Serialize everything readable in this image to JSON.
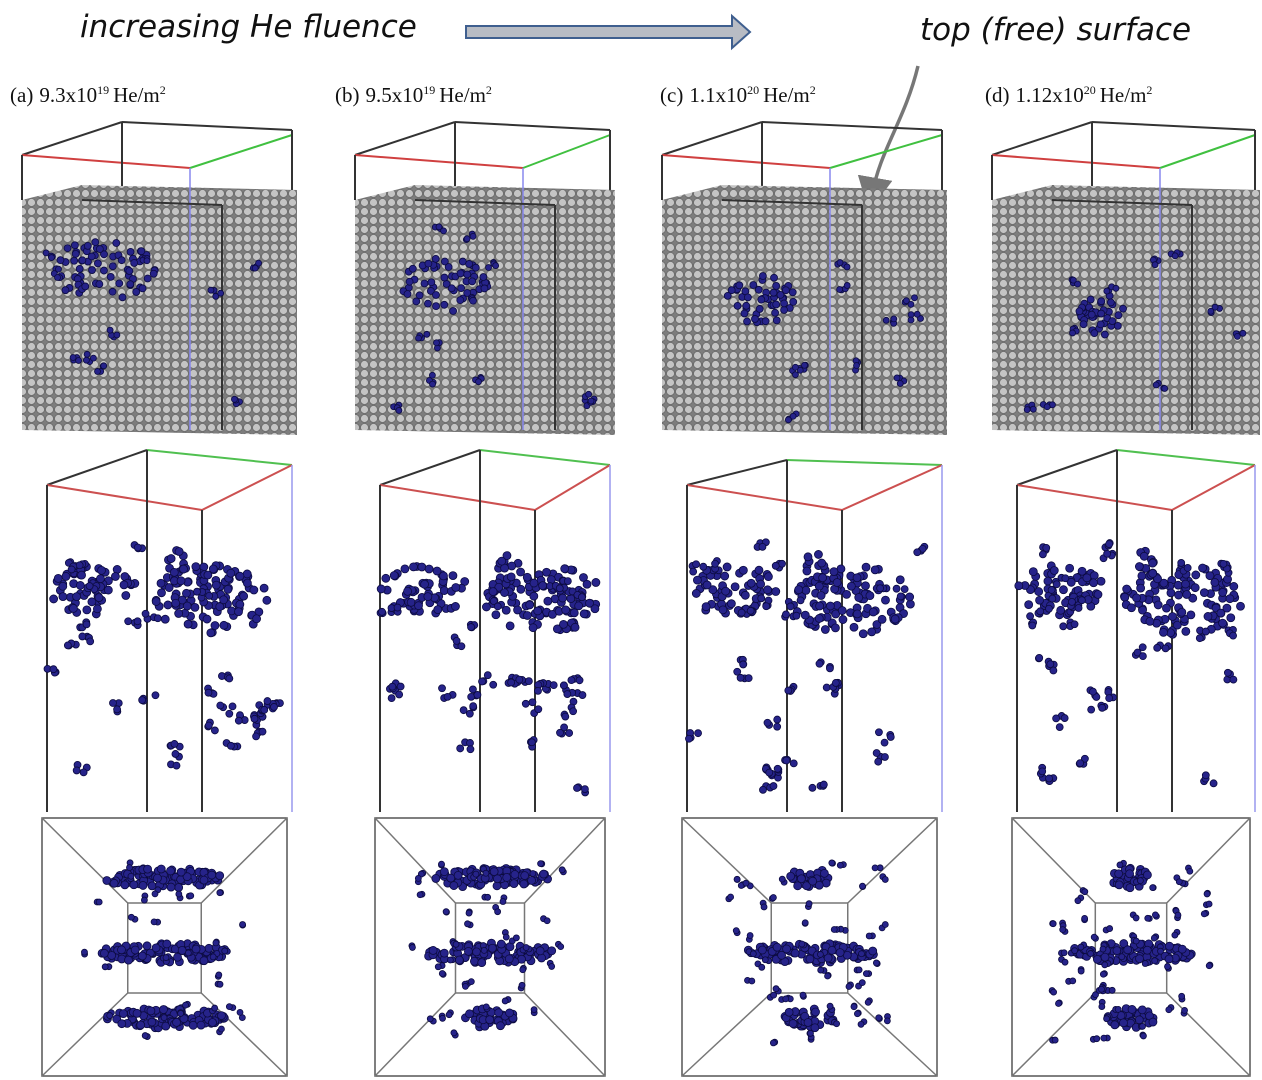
{
  "header": {
    "left_caption": "increasing He fluence",
    "right_caption": "top (free) surface"
  },
  "panels": [
    {
      "label": "(a)",
      "base": "9.3x10",
      "exponent": "19",
      "unit": "He/m",
      "unit_power": "2"
    },
    {
      "label": "(b)",
      "base": "9.5x10",
      "exponent": "19",
      "unit": "He/m",
      "unit_power": "2"
    },
    {
      "label": "(c)",
      "base": "1.1x10",
      "exponent": "20",
      "unit": "He/m",
      "unit_power": "2"
    },
    {
      "label": "(d)",
      "base": "1.12x10",
      "exponent": "20",
      "unit": "He/m",
      "unit_power": "2"
    }
  ]
}
